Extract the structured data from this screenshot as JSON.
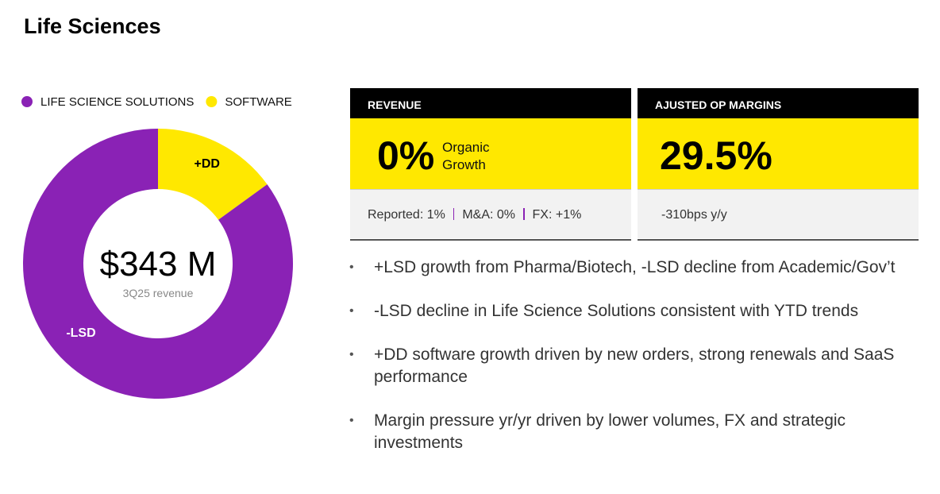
{
  "title": "Life Sciences",
  "chart_data": {
    "type": "donut",
    "categories": [
      "LIFE SCIENCE SOLUTIONS",
      "SOFTWARE"
    ],
    "values": [
      85,
      15
    ],
    "colors": [
      "#8a22b5",
      "#ffe800"
    ],
    "segment_labels": [
      "-LSD",
      "+DD"
    ],
    "center_value": "$343 M",
    "center_label": "3Q25 revenue",
    "legend": "top"
  },
  "cards": [
    {
      "header": "REVENUE",
      "value": "0%",
      "note": [
        "Organic",
        "Growth"
      ],
      "footer": [
        "Reported: 1%",
        "M&A: 0%",
        "FX: +1%"
      ]
    },
    {
      "header": "AJUSTED OP MARGINS",
      "value": "29.5%",
      "footer": [
        "-310bps y/y"
      ]
    }
  ],
  "bullets": [
    "+LSD growth from Pharma/Biotech, -LSD decline from Academic/Gov’t",
    "-LSD decline in Life Science Solutions consistent with YTD trends",
    "+DD software growth driven by new orders, strong renewals and SaaS performance",
    "Margin pressure yr/yr driven by lower volumes, FX and strategic investments"
  ]
}
